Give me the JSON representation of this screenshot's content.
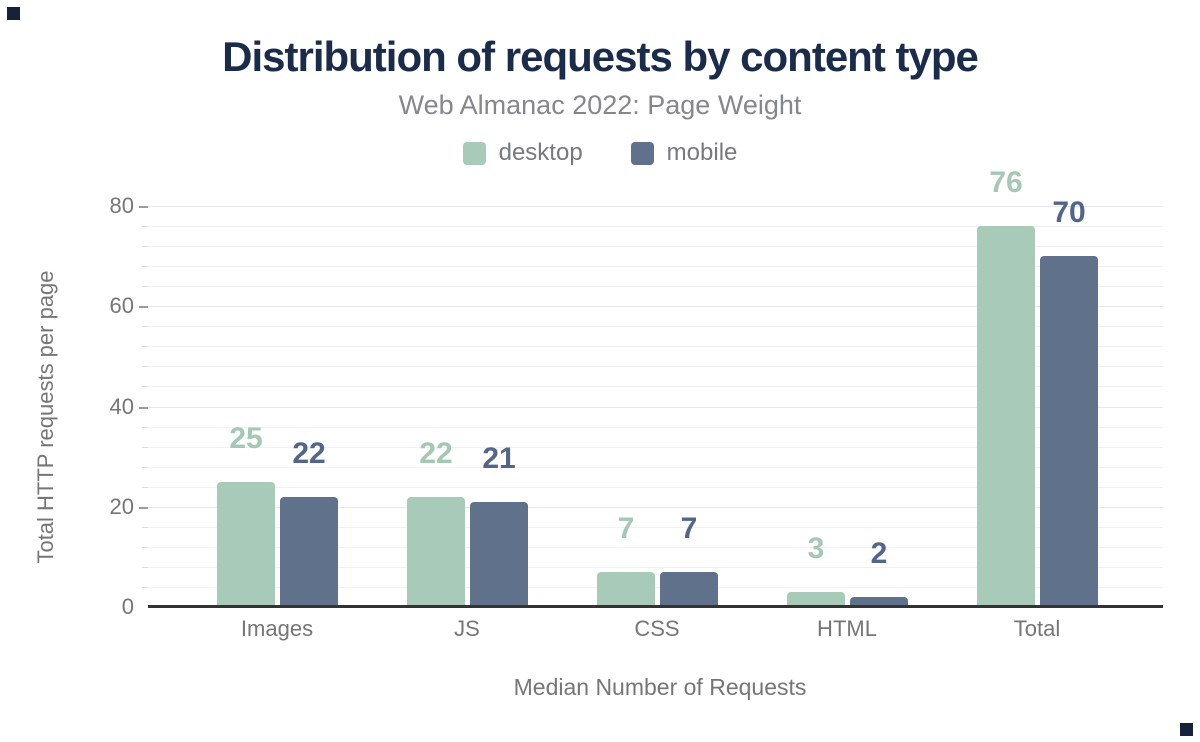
{
  "header": {
    "title": "Distribution of requests by content type",
    "subtitle": "Web Almanac 2022: Page Weight"
  },
  "legend": [
    {
      "label": "desktop",
      "color": "#a8cab8"
    },
    {
      "label": "mobile",
      "color": "#60718c"
    }
  ],
  "chart_data": {
    "type": "bar",
    "title": "Distribution of requests by content type",
    "subtitle": "Web Almanac 2022: Page Weight",
    "categories": [
      "Images",
      "JS",
      "CSS",
      "HTML",
      "Total"
    ],
    "series": [
      {
        "name": "desktop",
        "color": "#a8cab8",
        "label_color": "#a5c8b4",
        "values": [
          25,
          22,
          7,
          3,
          76
        ]
      },
      {
        "name": "mobile",
        "color": "#60718c",
        "label_color": "#54658a",
        "values": [
          22,
          21,
          7,
          2,
          70
        ]
      }
    ],
    "xlabel": "Median Number of Requests",
    "ylabel": "Total HTTP requests per page",
    "yticks": [
      0,
      20,
      40,
      60,
      80
    ],
    "minor_tick_step": 4,
    "ylim": [
      0,
      80
    ],
    "grid": "horizontal",
    "legend_position": "top",
    "data_labels": true
  },
  "colors": {
    "title": "#1b2b4a",
    "subtitle": "#85878c",
    "axis_text": "#767676",
    "axis_line": "#333333",
    "gridline": "#f1f1f1",
    "corner_marker": "#17213a"
  }
}
